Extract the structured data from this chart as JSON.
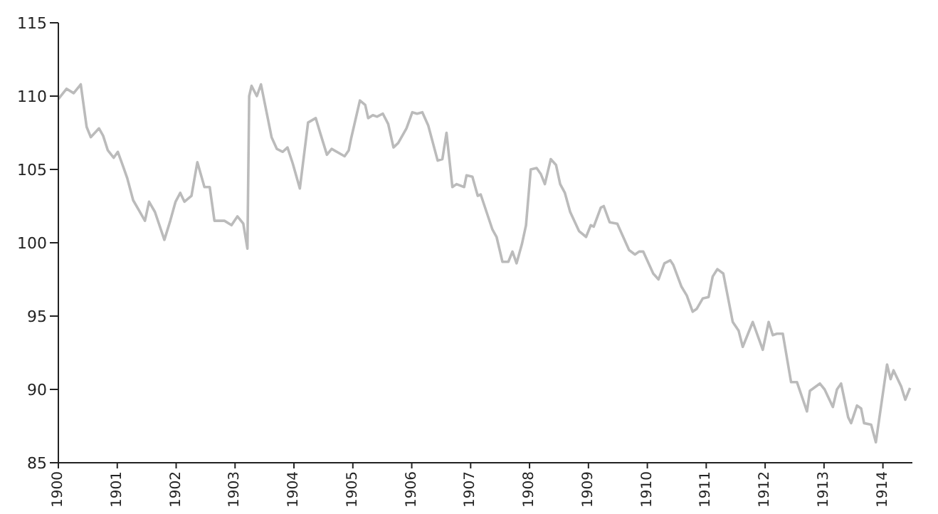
{
  "chart_data": {
    "type": "line",
    "x": [
      1900.0,
      1900.14,
      1900.26,
      1900.38,
      1900.48,
      1900.55,
      1900.69,
      1900.76,
      1900.84,
      1900.94,
      1901.01,
      1901.1,
      1901.17,
      1901.27,
      1901.37,
      1901.47,
      1901.54,
      1901.64,
      1901.8,
      1901.9,
      1901.99,
      1902.07,
      1902.14,
      1902.26,
      1902.36,
      1902.48,
      1902.57,
      1902.65,
      1902.82,
      1902.94,
      1903.04,
      1903.14,
      1903.21,
      1903.24,
      1903.28,
      1903.37,
      1903.44,
      1903.54,
      1903.62,
      1903.71,
      1903.81,
      1903.89,
      1903.98,
      1904.1,
      1904.24,
      1904.37,
      1904.46,
      1904.56,
      1904.64,
      1904.86,
      1904.93,
      1904.97,
      1905.12,
      1905.21,
      1905.26,
      1905.34,
      1905.41,
      1905.51,
      1905.6,
      1905.69,
      1905.77,
      1905.91,
      1906.01,
      1906.09,
      1906.18,
      1906.28,
      1906.44,
      1906.52,
      1906.59,
      1906.69,
      1906.76,
      1906.89,
      1906.93,
      1907.03,
      1907.12,
      1907.17,
      1907.37,
      1907.44,
      1907.54,
      1907.64,
      1907.71,
      1907.78,
      1907.87,
      1907.94,
      1908.02,
      1908.12,
      1908.19,
      1908.26,
      1908.36,
      1908.45,
      1908.52,
      1908.6,
      1908.69,
      1908.84,
      1908.96,
      1909.04,
      1909.09,
      1909.21,
      1909.26,
      1909.36,
      1909.49,
      1909.69,
      1909.79,
      1909.86,
      1909.93,
      1910.1,
      1910.19,
      1910.29,
      1910.39,
      1910.44,
      1910.58,
      1910.67,
      1910.77,
      1910.84,
      1910.94,
      1911.04,
      1911.11,
      1911.19,
      1911.29,
      1911.45,
      1911.55,
      1911.62,
      1911.79,
      1911.96,
      1912.06,
      1912.13,
      1912.2,
      1912.3,
      1912.44,
      1912.54,
      1912.71,
      1912.76,
      1912.93,
      1913.01,
      1913.15,
      1913.22,
      1913.29,
      1913.41,
      1913.46,
      1913.56,
      1913.63,
      1913.68,
      1913.8,
      1913.88,
      1914.07,
      1914.13,
      1914.18,
      1914.31,
      1914.38,
      1914.46
    ],
    "series": [
      {
        "color": "#bbbbbb",
        "values": [
          109.8,
          110.5,
          110.2,
          110.8,
          107.9,
          107.2,
          107.8,
          107.3,
          106.3,
          105.8,
          106.2,
          105.2,
          104.4,
          102.9,
          102.2,
          101.5,
          102.8,
          102.1,
          100.2,
          101.5,
          102.8,
          103.4,
          102.8,
          103.2,
          105.5,
          103.8,
          103.8,
          101.5,
          101.5,
          101.2,
          101.8,
          101.3,
          99.6,
          110.0,
          110.7,
          110.0,
          110.8,
          108.8,
          107.2,
          106.4,
          106.2,
          106.5,
          105.4,
          103.7,
          108.2,
          108.5,
          107.3,
          106.0,
          106.4,
          105.9,
          106.3,
          107.1,
          109.7,
          109.4,
          108.5,
          108.7,
          108.6,
          108.8,
          108.1,
          106.5,
          106.8,
          107.8,
          108.9,
          108.8,
          108.9,
          108.0,
          105.6,
          105.7,
          107.5,
          103.8,
          104.0,
          103.8,
          104.6,
          104.5,
          103.2,
          103.3,
          100.9,
          100.4,
          98.7,
          98.7,
          99.4,
          98.6,
          99.9,
          101.2,
          105.0,
          105.1,
          104.7,
          104.0,
          105.7,
          105.3,
          104.0,
          103.4,
          102.1,
          100.8,
          100.4,
          101.2,
          101.1,
          102.4,
          102.5,
          101.4,
          101.3,
          99.5,
          99.2,
          99.4,
          99.4,
          97.9,
          97.5,
          98.6,
          98.8,
          98.5,
          97.0,
          96.4,
          95.3,
          95.5,
          96.2,
          96.3,
          97.7,
          98.2,
          97.9,
          94.6,
          94.0,
          92.9,
          94.6,
          92.7,
          94.6,
          93.7,
          93.8,
          93.8,
          90.5,
          90.5,
          88.5,
          89.9,
          90.4,
          90.0,
          88.8,
          90.0,
          90.4,
          88.1,
          87.7,
          88.9,
          88.7,
          87.7,
          87.6,
          86.4,
          91.7,
          90.7,
          91.3,
          90.2,
          89.3,
          90.1
        ]
      }
    ],
    "xlim": [
      1900,
      1914.5
    ],
    "xticks": [
      1900,
      1901,
      1902,
      1903,
      1904,
      1905,
      1906,
      1907,
      1908,
      1909,
      1910,
      1911,
      1912,
      1913,
      1914
    ],
    "ylim": [
      85,
      115
    ],
    "yticks": [
      85,
      90,
      95,
      100,
      105,
      110,
      115
    ],
    "grid": false,
    "legend": false,
    "marker": "none",
    "line_style": "solid"
  }
}
